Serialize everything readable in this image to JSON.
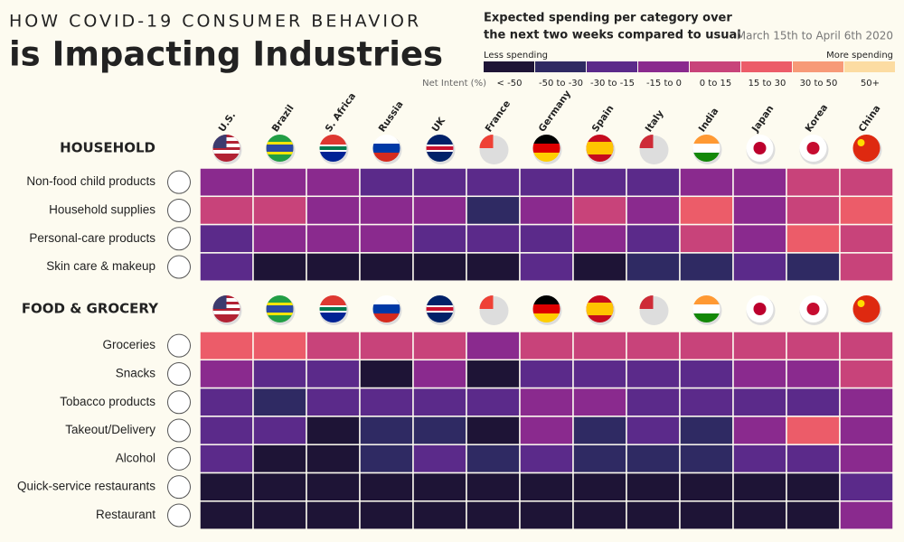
{
  "header": {
    "title_top": "HOW COVID-19 CONSUMER BEHAVIOR",
    "title_main": "is Impacting Industries"
  },
  "chart_data": {
    "type": "heatmap",
    "legend_title": [
      "Expected spending per category over",
      "the next two weeks compared to usual"
    ],
    "date": "March 15th to April 6th 2020",
    "less_label": "Less spending",
    "more_label": "More spending",
    "scale_title": "Net Intent (%)",
    "scale": {
      "thresholds": [
        -50,
        -30,
        -15,
        0,
        15,
        30,
        50
      ],
      "labels": [
        "< -50",
        "-50 to -30",
        "-30 to -15",
        "-15 to 0",
        "0 to 15",
        "15 to 30",
        "30 to 50",
        "50+"
      ],
      "colors": [
        "#1e1436",
        "#2f2a63",
        "#5b2a8a",
        "#8a2a8e",
        "#c8437a",
        "#ec5c69",
        "#f79a78",
        "#fcdca2"
      ]
    },
    "columns": [
      "U.S.",
      "Brazil",
      "S. Africa",
      "Russia",
      "UK",
      "France",
      "Germany",
      "Spain",
      "Italy",
      "India",
      "Japan",
      "Korea",
      "China"
    ],
    "sections": [
      {
        "name": "HOUSEHOLD",
        "rows": [
          "Non-food child products",
          "Household supplies",
          "Personal-care products",
          "Skin care & makeup"
        ],
        "values": [
          [
            -8,
            -8,
            -8,
            -22,
            -22,
            -22,
            -22,
            -22,
            -22,
            -8,
            -8,
            8,
            8
          ],
          [
            8,
            8,
            -8,
            -8,
            -8,
            -40,
            -8,
            8,
            -8,
            22,
            -8,
            8,
            22
          ],
          [
            -22,
            -8,
            -8,
            -8,
            -22,
            -22,
            -22,
            -8,
            -22,
            8,
            -8,
            22,
            8
          ],
          [
            -22,
            -60,
            -60,
            -60,
            -60,
            -60,
            -22,
            -60,
            -40,
            -40,
            -22,
            -40,
            8
          ]
        ]
      },
      {
        "name": "FOOD & GROCERY",
        "rows": [
          "Groceries",
          "Snacks",
          "Tobacco products",
          "Takeout/Delivery",
          "Alcohol",
          "Quick-service restaurants",
          "Restaurant"
        ],
        "values": [
          [
            22,
            22,
            8,
            8,
            8,
            -8,
            8,
            8,
            8,
            8,
            8,
            8,
            8
          ],
          [
            -8,
            -22,
            -22,
            -60,
            -8,
            -60,
            -22,
            -22,
            -22,
            -22,
            -8,
            -8,
            8
          ],
          [
            -22,
            -40,
            -22,
            -22,
            -22,
            -22,
            -8,
            -8,
            -22,
            -22,
            -22,
            -22,
            -8
          ],
          [
            -22,
            -22,
            -60,
            -40,
            -40,
            -60,
            -8,
            -40,
            -22,
            -40,
            -8,
            22,
            -8
          ],
          [
            -22,
            -60,
            -60,
            -40,
            -22,
            -40,
            -22,
            -40,
            -40,
            -40,
            -22,
            -22,
            -8
          ],
          [
            -60,
            -60,
            -60,
            -60,
            -60,
            -60,
            -60,
            -60,
            -60,
            -60,
            -60,
            -60,
            -22
          ],
          [
            -60,
            -60,
            -60,
            -60,
            -60,
            -60,
            -60,
            -60,
            -60,
            -60,
            -60,
            -60,
            -8
          ]
        ]
      }
    ]
  }
}
